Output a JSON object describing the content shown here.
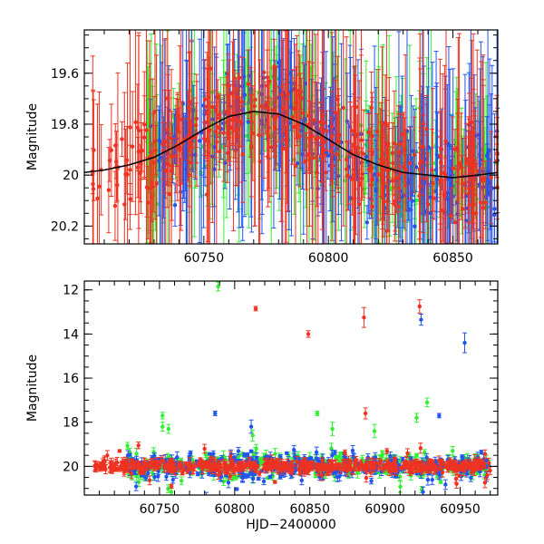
{
  "chart_data": [
    {
      "type": "scatter",
      "panel": "top",
      "title": "",
      "xlabel": "",
      "ylabel": "Magnitude",
      "xlim": [
        60702,
        60868
      ],
      "ylim": [
        20.27,
        19.43
      ],
      "y_inverted": true,
      "xticks": [
        60750,
        60800,
        60850
      ],
      "xtick_labels": [
        "60750",
        "60800",
        "60850"
      ],
      "yticks": [
        19.6,
        19.8,
        20,
        20.2
      ],
      "ytick_labels": [
        "19.6",
        "19.8",
        "20",
        "20.2"
      ],
      "grid": false,
      "series": [
        {
          "name": "green",
          "color": "#33ee33"
        },
        {
          "name": "blue",
          "color": "#2255ee"
        },
        {
          "name": "red",
          "color": "#ee3322"
        }
      ],
      "model_curve": {
        "name": "model",
        "color": "#000000",
        "x": [
          60702,
          60710,
          60720,
          60730,
          60740,
          60750,
          60760,
          60770,
          60780,
          60790,
          60800,
          60810,
          60820,
          60830,
          60840,
          60850,
          60860,
          60868
        ],
        "y": [
          19.99,
          19.98,
          19.96,
          19.93,
          19.88,
          19.82,
          19.77,
          19.75,
          19.76,
          19.8,
          19.86,
          19.92,
          19.96,
          19.99,
          20.0,
          20.01,
          20.0,
          19.99
        ]
      },
      "point_summary": "dense overlapping photometry with large error bars; early red-only points before 60728"
    },
    {
      "type": "scatter",
      "panel": "bottom",
      "title": "",
      "xlabel": "HJD−2400000",
      "ylabel": "Magnitude",
      "xlim": [
        60700,
        60975
      ],
      "ylim": [
        21.3,
        11.6
      ],
      "y_inverted": true,
      "xticks": [
        60750,
        60800,
        60850,
        60900,
        60950
      ],
      "xtick_labels": [
        "60750",
        "60800",
        "60850",
        "60900",
        "60950"
      ],
      "yticks": [
        12,
        14,
        16,
        18,
        20
      ],
      "ytick_labels": [
        "12",
        "14",
        "16",
        "18",
        "20"
      ],
      "grid": false,
      "series": [
        {
          "name": "green",
          "color": "#33ee33"
        },
        {
          "name": "blue",
          "color": "#2255ee"
        },
        {
          "name": "red",
          "color": "#ee3322"
        }
      ],
      "outliers": [
        {
          "series": "green",
          "x": 60789,
          "y": 11.85,
          "err": 0.2
        },
        {
          "series": "red",
          "x": 60814,
          "y": 12.85,
          "err": 0.1
        },
        {
          "series": "red",
          "x": 60849,
          "y": 14.0,
          "err": 0.15
        },
        {
          "series": "red",
          "x": 60886,
          "y": 13.25,
          "err": 0.45
        },
        {
          "series": "red",
          "x": 60923,
          "y": 12.75,
          "err": 0.3
        },
        {
          "series": "blue",
          "x": 60924,
          "y": 13.35,
          "err": 0.25
        },
        {
          "series": "blue",
          "x": 60953,
          "y": 14.4,
          "err": 0.45
        },
        {
          "series": "blue",
          "x": 60936,
          "y": 17.7,
          "err": 0.1
        },
        {
          "series": "green",
          "x": 60928,
          "y": 17.1,
          "err": 0.2
        },
        {
          "series": "green",
          "x": 60921,
          "y": 17.8,
          "err": 0.2
        },
        {
          "series": "green",
          "x": 60752,
          "y": 17.7,
          "err": 0.15
        },
        {
          "series": "green",
          "x": 60752,
          "y": 18.2,
          "err": 0.2
        },
        {
          "series": "green",
          "x": 60756,
          "y": 18.3,
          "err": 0.2
        },
        {
          "series": "blue",
          "x": 60787,
          "y": 17.6,
          "err": 0.1
        },
        {
          "series": "blue",
          "x": 60811,
          "y": 18.2,
          "err": 0.3
        },
        {
          "series": "green",
          "x": 60812,
          "y": 18.6,
          "err": 0.25
        },
        {
          "series": "green",
          "x": 60855,
          "y": 17.6,
          "err": 0.1
        },
        {
          "series": "red",
          "x": 60887,
          "y": 17.6,
          "err": 0.25
        },
        {
          "series": "green",
          "x": 60893,
          "y": 18.4,
          "err": 0.3
        },
        {
          "series": "green",
          "x": 60865,
          "y": 18.3,
          "err": 0.3
        },
        {
          "series": "red",
          "x": 60736,
          "y": 19.05,
          "err": 0.15
        },
        {
          "series": "red",
          "x": 60780,
          "y": 19.2,
          "err": 0.2
        },
        {
          "series": "green",
          "x": 60945,
          "y": 19.3,
          "err": 0.2
        },
        {
          "series": "red",
          "x": 60915,
          "y": 19.4,
          "err": 0.2
        }
      ],
      "baseline_magnitude": 20.0,
      "baseline_range": [
        60705,
        60970
      ]
    }
  ]
}
